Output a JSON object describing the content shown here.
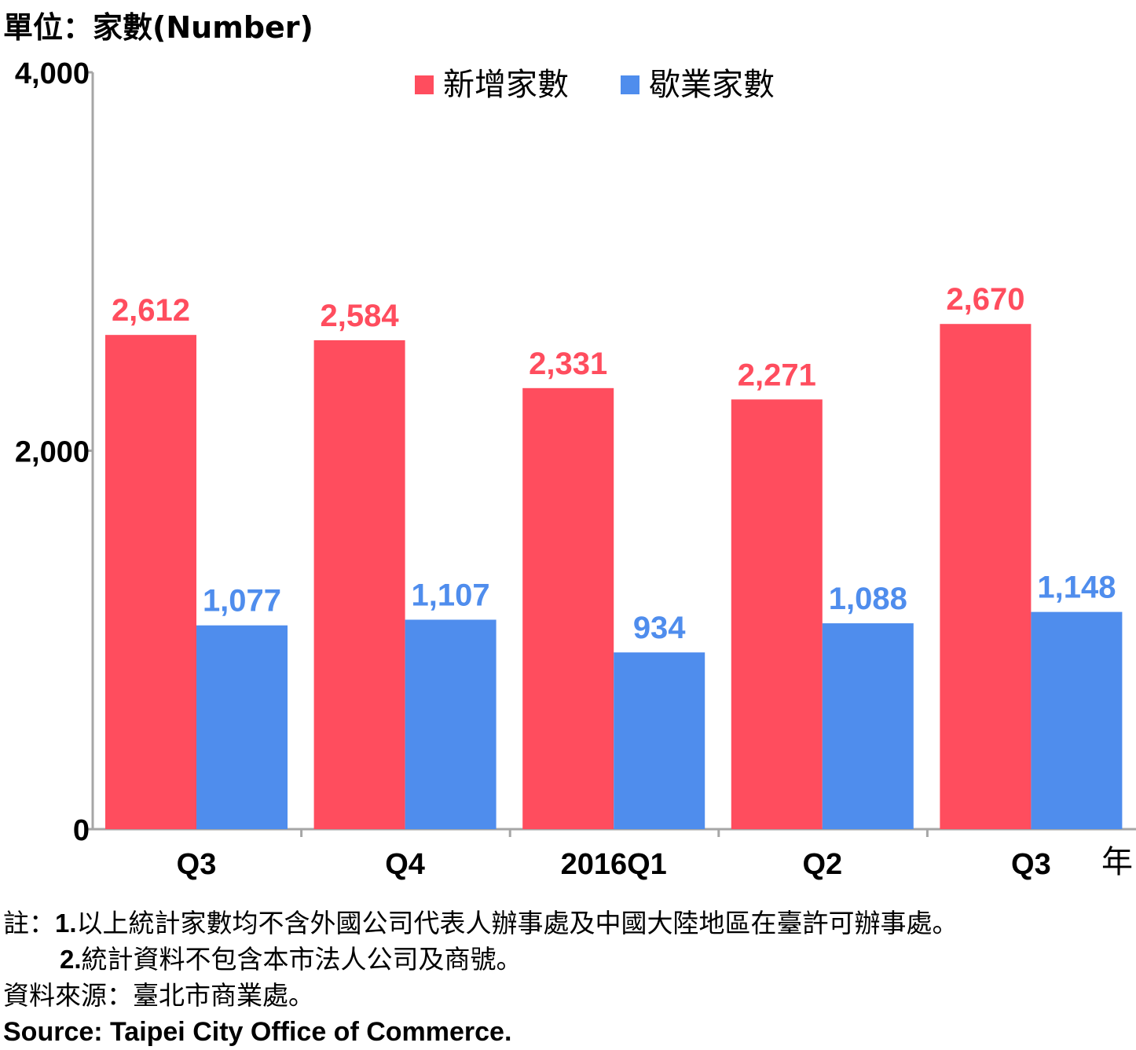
{
  "unit_label": "單位：家數(Number)",
  "x_unit_label": "年",
  "legend": [
    {
      "name": "新增家數",
      "color": "#ff4d5e"
    },
    {
      "name": "歇業家數",
      "color": "#4f8ded"
    }
  ],
  "chart_data": {
    "type": "bar",
    "categories": [
      "Q3",
      "Q4",
      "2016Q1",
      "Q2",
      "Q3"
    ],
    "series": [
      {
        "name": "新增家數",
        "color": "#ff4d5e",
        "values": [
          2612,
          2584,
          2331,
          2271,
          2670
        ],
        "labels": [
          "2,612",
          "2,584",
          "2,331",
          "2,271",
          "2,670"
        ]
      },
      {
        "name": "歇業家數",
        "color": "#4f8ded",
        "values": [
          1077,
          1107,
          934,
          1088,
          1148
        ],
        "labels": [
          "1,077",
          "1,107",
          "934",
          "1,088",
          "1,148"
        ]
      }
    ],
    "ylim": [
      0,
      4000
    ],
    "yticks": [
      0,
      2000,
      4000
    ],
    "ytick_labels": [
      "0",
      "2,000",
      "4,000"
    ],
    "grid": false,
    "legend_position": "top"
  },
  "notes": {
    "line1_prefix": "註：",
    "line1_num": "1.",
    "line1_text": "以上統計家數均不含外國公司代表人辦事處及中國大陸地區在臺許可辦事處。",
    "line2_num": "2.",
    "line2_text": "統計資料不包含本市法人公司及商號。",
    "source_zh": "資料來源：臺北市商業處。",
    "source_en": "Source: Taipei City Office of Commerce."
  }
}
